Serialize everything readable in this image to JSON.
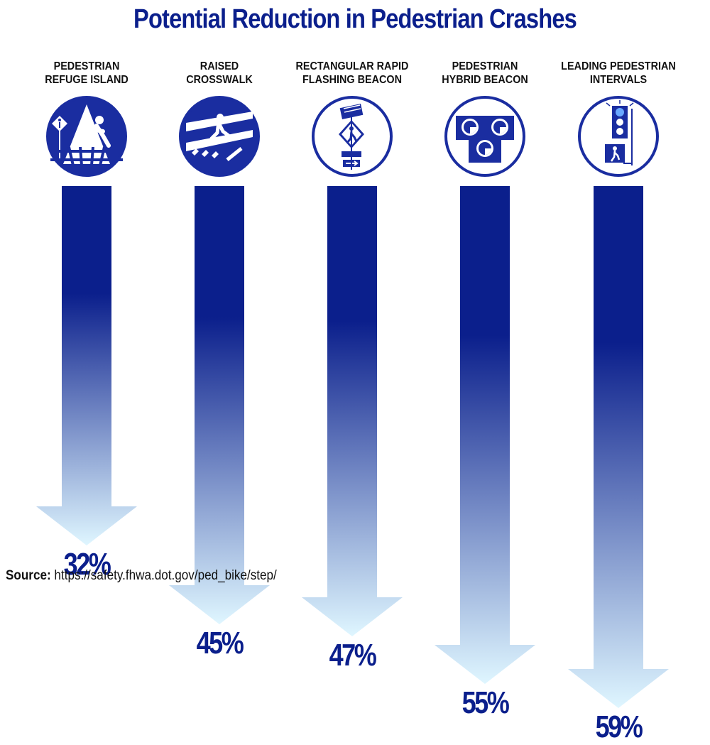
{
  "title": "Potential Reduction in Pedestrian Crashes",
  "source": {
    "label": "Source:",
    "url": "https://safety.fhwa.dot.gov/ped_bike/step/"
  },
  "colors": {
    "dark_blue": "#0b1f8c",
    "light_blue": "#dff6ff"
  },
  "chart_data": {
    "type": "bar",
    "title": "Potential Reduction in Pedestrian Crashes",
    "orientation": "vertical-down-arrows",
    "categories": [
      "PEDESTRIAN REFUGE ISLAND",
      "RAISED CROSSWALK",
      "RECTANGULAR RAPID FLASHING BEACON",
      "PEDESTRIAN HYBRID BEACON",
      "LEADING PEDESTRIAN INTERVALS"
    ],
    "category_lines": [
      [
        "PEDESTRIAN",
        "REFUGE ISLAND"
      ],
      [
        "RAISED",
        "CROSSWALK"
      ],
      [
        "RECTANGULAR RAPID",
        "FLASHING BEACON"
      ],
      [
        "PEDESTRIAN",
        "HYBRID BEACON"
      ],
      [
        "LEADING PEDESTRIAN",
        "INTERVALS"
      ]
    ],
    "values": [
      32,
      45,
      47,
      55,
      59
    ],
    "value_labels": [
      "32%",
      "45%",
      "47%",
      "55%",
      "59%"
    ],
    "icons": [
      "refuge-island-icon",
      "raised-crosswalk-icon",
      "rapid-flashing-beacon-icon",
      "hybrid-beacon-icon",
      "leading-interval-signal-icon"
    ],
    "unit": "%"
  }
}
